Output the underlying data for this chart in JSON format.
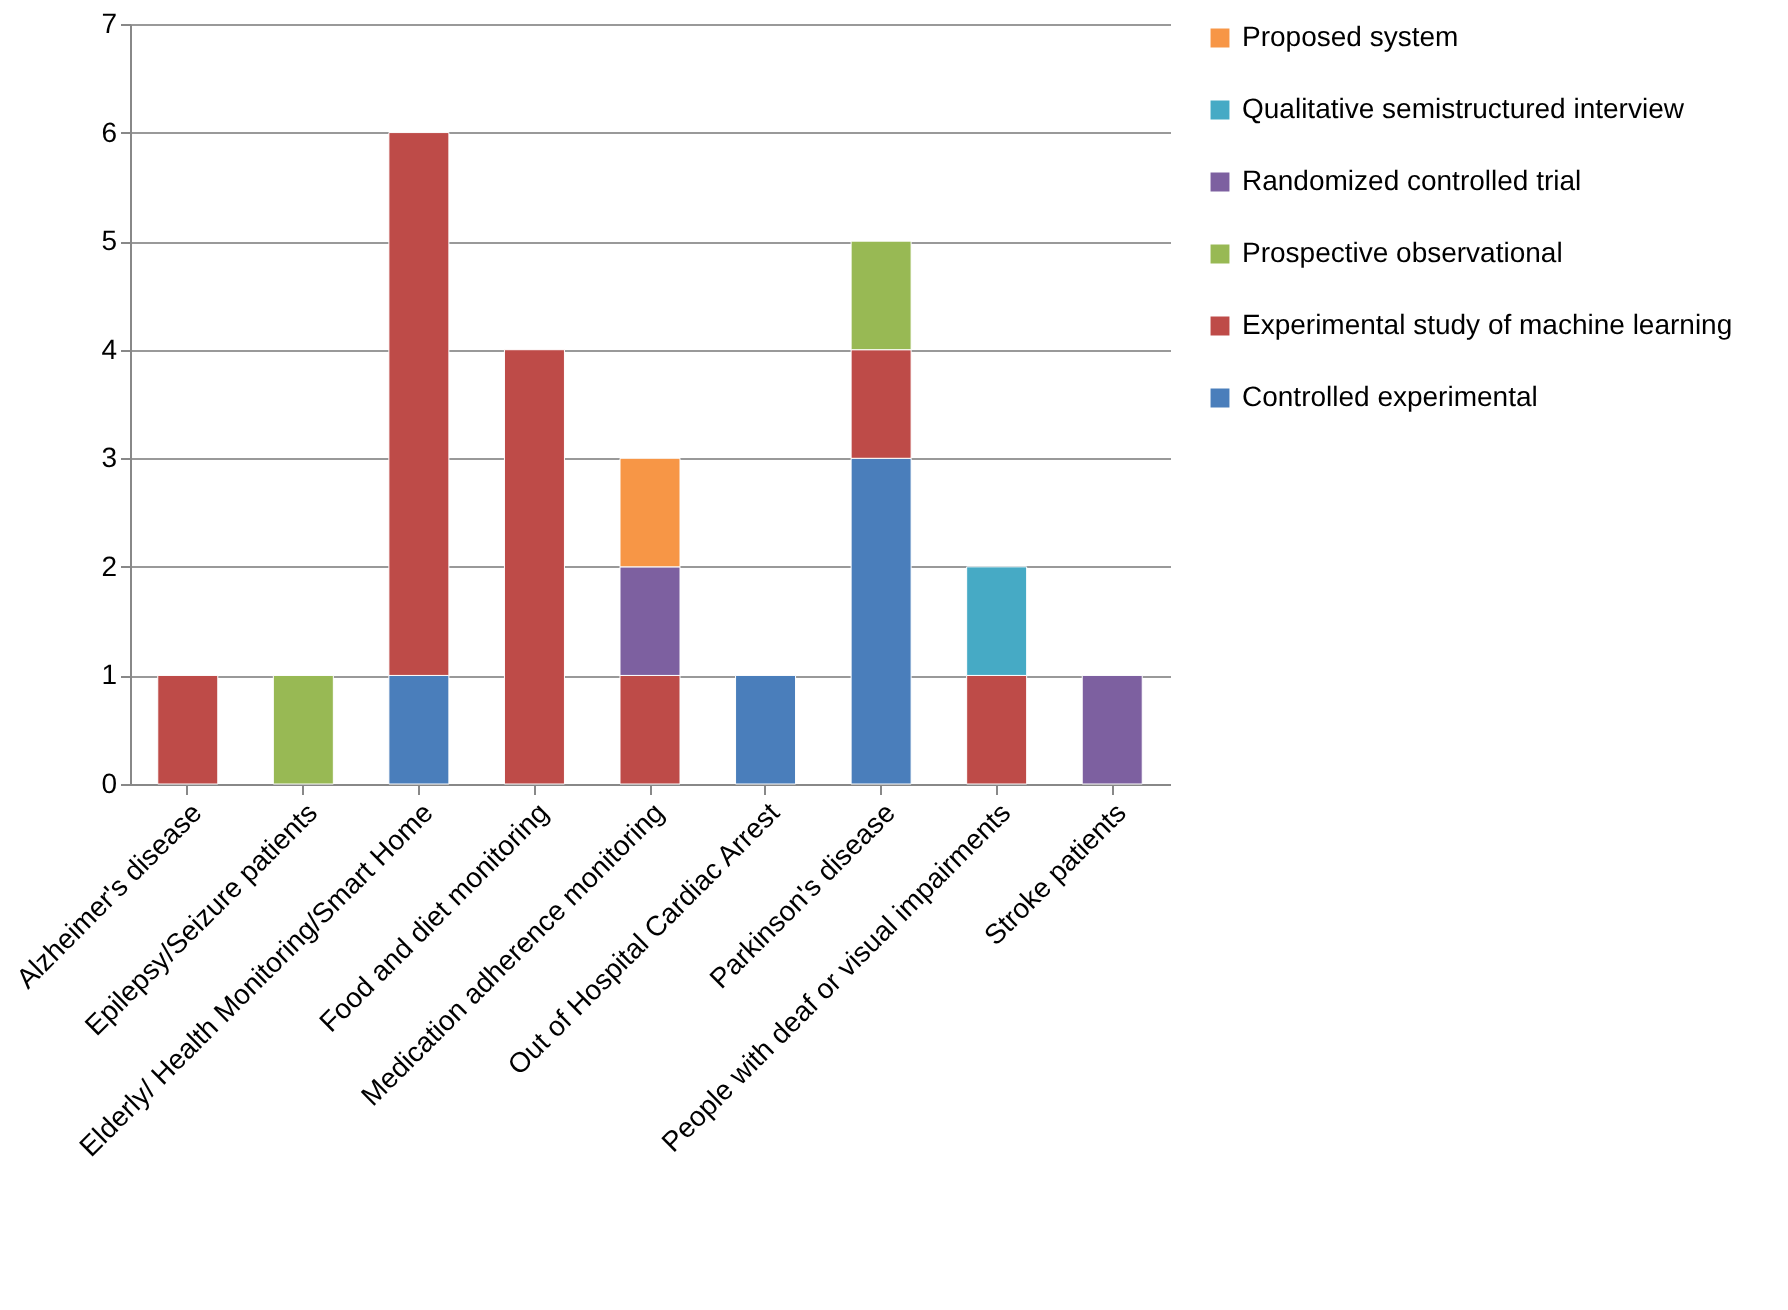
{
  "chart_data": {
    "type": "bar",
    "stacked": true,
    "categories": [
      "Alzheimer's disease",
      "Epilepsy/Seizure patients",
      "Elderly/ Health Monitoring/Smart Home",
      "Food and diet monitoring",
      "Medication adherence monitoring",
      "Out of Hospital Cardiac Arrest",
      "Parkinson's disease",
      "People with deaf or visual impairments",
      "Stroke patients"
    ],
    "series": [
      {
        "name": "Controlled experimental",
        "color": "#4a7ebb",
        "values": [
          null,
          null,
          1,
          null,
          null,
          1,
          3,
          null,
          null
        ]
      },
      {
        "name": "Experimental study of machine learning",
        "color": "#be4b48",
        "values": [
          1,
          null,
          5,
          4,
          1,
          null,
          1,
          1,
          null
        ]
      },
      {
        "name": "Prospective observational",
        "color": "#98b954",
        "values": [
          null,
          1,
          null,
          null,
          null,
          null,
          1,
          null,
          null
        ]
      },
      {
        "name": "Randomized controlled trial",
        "color": "#7d60a0",
        "values": [
          null,
          null,
          null,
          null,
          1,
          null,
          null,
          null,
          1
        ]
      },
      {
        "name": "Qualitative semistructured interview",
        "color": "#46aac5",
        "values": [
          null,
          null,
          null,
          null,
          null,
          null,
          null,
          1,
          null
        ]
      },
      {
        "name": "Proposed system",
        "color": "#f79646",
        "values": [
          null,
          null,
          null,
          null,
          1,
          null,
          null,
          null,
          null
        ]
      }
    ],
    "ylim": [
      0,
      7
    ],
    "yticks": [
      0,
      1,
      2,
      3,
      4,
      5,
      6,
      7
    ],
    "grid": "y",
    "legend": "right"
  }
}
